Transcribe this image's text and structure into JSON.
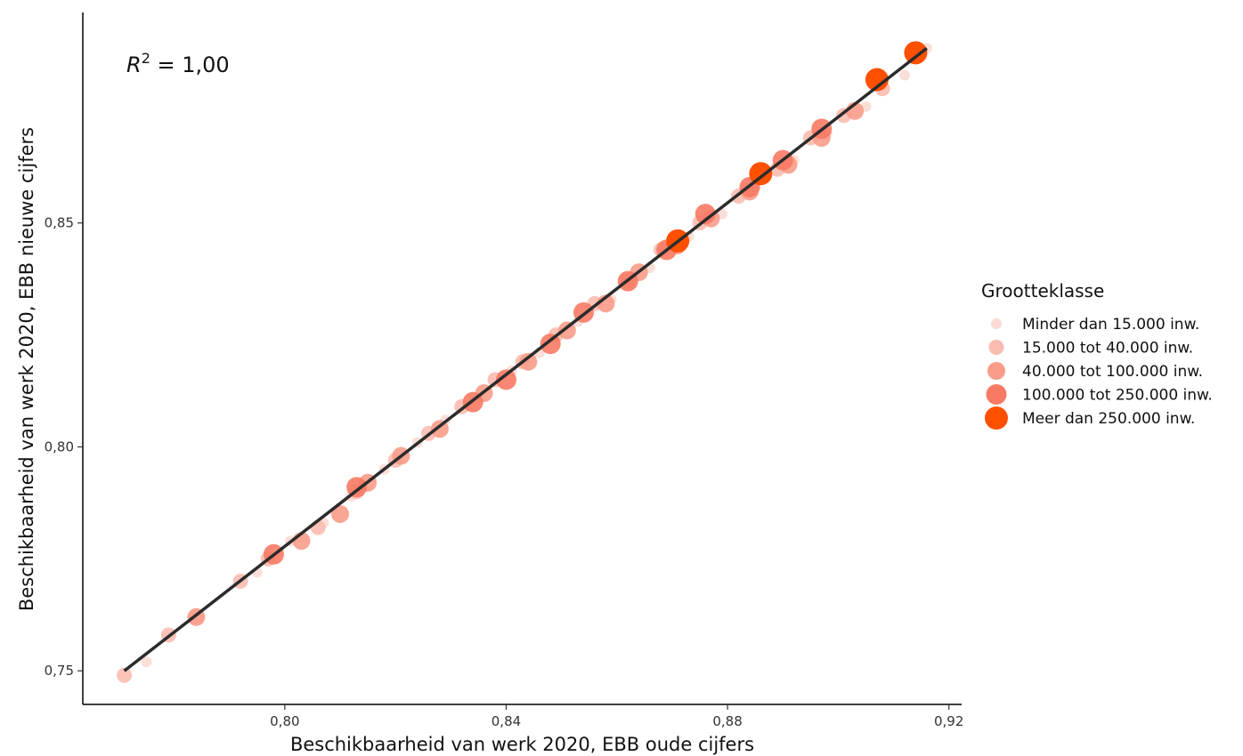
{
  "chart_data": {
    "type": "scatter",
    "xlabel": "Beschikbaarheid van werk 2020, EBB oude cijfers",
    "ylabel": "Beschikbaarheid van werk 2020, EBB nieuwe cijfers",
    "xlim": [
      0.7635,
      0.9223
    ],
    "ylim": [
      0.7425,
      0.897
    ],
    "x_ticks": [
      0.8,
      0.84,
      0.88,
      0.92
    ],
    "x_tick_labels": [
      "0,80",
      "0,84",
      "0,88",
      "0,92"
    ],
    "y_ticks": [
      0.75,
      0.8,
      0.85
    ],
    "y_tick_labels": [
      "0,75",
      "0,80",
      "0,85"
    ],
    "grid": false,
    "annotation": {
      "prefix": "R",
      "sup": "2",
      "text": " = 1,00"
    },
    "fit_line": {
      "x": [
        0.771,
        0.916
      ],
      "y": [
        0.75,
        0.889
      ]
    },
    "legend": {
      "title": "Grootteklasse",
      "placement": "right",
      "entries": [
        {
          "label": "Minder dan 15.000 inw.",
          "color": "#fadbd4"
        },
        {
          "label": "15.000 tot 40.000 inw.",
          "color": "#fbbcb0"
        },
        {
          "label": "40.000 tot 100.000 inw.",
          "color": "#fa9c8a"
        },
        {
          "label": "100.000 tot 250.000 inw.",
          "color": "#f87a64"
        },
        {
          "label": "Meer dan 250.000 inw.",
          "color": "#ff5000"
        }
      ]
    },
    "series": [
      {
        "class": 0,
        "x": [
          0.775,
          0.795,
          0.801,
          0.807,
          0.812,
          0.818,
          0.824,
          0.829,
          0.834,
          0.841,
          0.846,
          0.853,
          0.859,
          0.866,
          0.873,
          0.879,
          0.885,
          0.892,
          0.898,
          0.905,
          0.912,
          0.916
        ],
        "y": [
          0.752,
          0.772,
          0.779,
          0.783,
          0.789,
          0.795,
          0.801,
          0.806,
          0.81,
          0.817,
          0.821,
          0.828,
          0.833,
          0.84,
          0.847,
          0.852,
          0.858,
          0.864,
          0.87,
          0.876,
          0.883,
          0.889
        ]
      },
      {
        "class": 1,
        "x": [
          0.771,
          0.779,
          0.784,
          0.792,
          0.797,
          0.806,
          0.813,
          0.82,
          0.826,
          0.832,
          0.838,
          0.843,
          0.849,
          0.856,
          0.862,
          0.868,
          0.875,
          0.882,
          0.889,
          0.895,
          0.901,
          0.908
        ],
        "y": [
          0.749,
          0.758,
          0.762,
          0.77,
          0.775,
          0.782,
          0.79,
          0.797,
          0.803,
          0.809,
          0.815,
          0.819,
          0.825,
          0.832,
          0.837,
          0.844,
          0.85,
          0.856,
          0.862,
          0.869,
          0.874,
          0.88
        ]
      },
      {
        "class": 2,
        "x": [
          0.784,
          0.803,
          0.81,
          0.815,
          0.821,
          0.828,
          0.836,
          0.844,
          0.851,
          0.858,
          0.864,
          0.871,
          0.877,
          0.884,
          0.891,
          0.897,
          0.903
        ],
        "y": [
          0.762,
          0.779,
          0.785,
          0.792,
          0.798,
          0.804,
          0.812,
          0.819,
          0.826,
          0.832,
          0.839,
          0.845,
          0.851,
          0.857,
          0.863,
          0.869,
          0.875
        ]
      },
      {
        "class": 3,
        "x": [
          0.798,
          0.813,
          0.834,
          0.84,
          0.848,
          0.854,
          0.862,
          0.869,
          0.876,
          0.884,
          0.89,
          0.897
        ],
        "y": [
          0.776,
          0.791,
          0.81,
          0.815,
          0.823,
          0.83,
          0.837,
          0.844,
          0.852,
          0.858,
          0.864,
          0.871
        ]
      },
      {
        "class": 4,
        "x": [
          0.871,
          0.886,
          0.907,
          0.914
        ],
        "y": [
          0.846,
          0.861,
          0.882,
          0.888
        ]
      }
    ]
  }
}
